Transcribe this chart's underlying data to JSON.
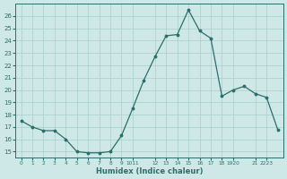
{
  "x": [
    0,
    1,
    2,
    3,
    4,
    5,
    6,
    7,
    8,
    9,
    10,
    11,
    12,
    13,
    14,
    15,
    16,
    17,
    18,
    19,
    20,
    21,
    22,
    23
  ],
  "y": [
    17.5,
    17.0,
    16.7,
    16.7,
    16.0,
    15.0,
    14.9,
    14.9,
    15.0,
    16.3,
    18.5,
    20.8,
    22.7,
    24.4,
    24.5,
    26.5,
    24.8,
    24.2,
    19.5,
    20.0,
    20.3,
    19.7,
    19.4,
    16.8
  ],
  "xlabel": "Humidex (Indice chaleur)",
  "xlim": [
    -0.5,
    23.5
  ],
  "ylim": [
    14.5,
    27.0
  ],
  "yticks": [
    15,
    16,
    17,
    18,
    19,
    20,
    21,
    22,
    23,
    24,
    25,
    26
  ],
  "xtick_positions": [
    0,
    1,
    2,
    3,
    4,
    5,
    6,
    7,
    8,
    9,
    10,
    12,
    13,
    14,
    15,
    16,
    17,
    18,
    19,
    21,
    22
  ],
  "xtick_labels": [
    "0",
    "1",
    "2",
    "3",
    "4",
    "5",
    "6",
    "7",
    "8",
    "9",
    "1011",
    "12",
    "13",
    "14",
    "15",
    "16",
    "17",
    "18",
    "1920",
    "21",
    "2223"
  ],
  "bg_color": "#cde8e7",
  "grid_color": "#a8cecc",
  "line_color": "#2d6e6a",
  "marker_color": "#2d6e6a",
  "label_color": "#2d6e6a",
  "tick_color": "#2d6e6a",
  "spine_color": "#2d6e6a"
}
